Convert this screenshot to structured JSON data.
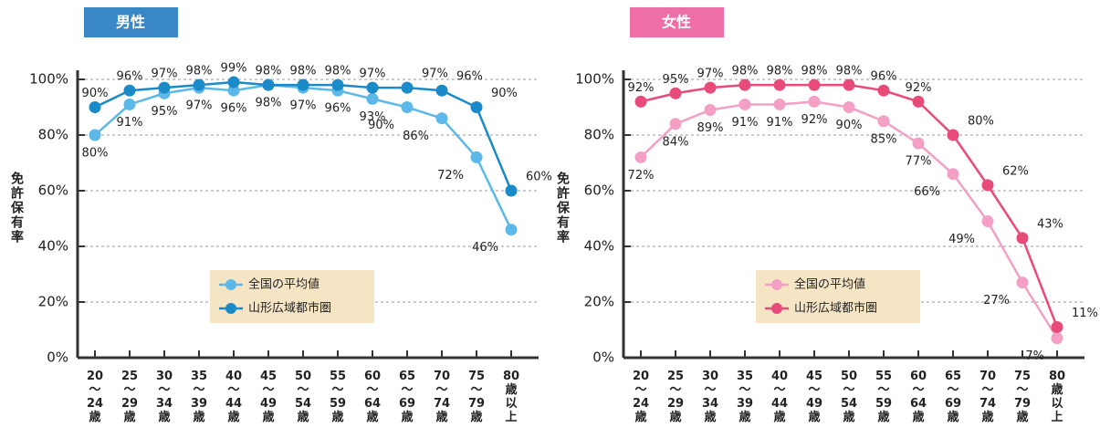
{
  "chart_data": [
    {
      "type": "line",
      "title": "男性",
      "y_label": "免許保有率",
      "categories": [
        "20～24歳",
        "25～29歳",
        "30～34歳",
        "35～39歳",
        "40～44歳",
        "45～49歳",
        "50～54歳",
        "55～59歳",
        "60～64歳",
        "65～69歳",
        "70～74歳",
        "75～79歳",
        "80歳以上"
      ],
      "ylim": [
        0,
        100
      ],
      "yticks": [
        {
          "value": 0,
          "label": "0%"
        },
        {
          "value": 20,
          "label": "20%"
        },
        {
          "value": 40,
          "label": "40%"
        },
        {
          "value": 60,
          "label": "60%"
        },
        {
          "value": 80,
          "label": "80%"
        },
        {
          "value": 100,
          "label": "100%"
        }
      ],
      "grid": true,
      "title_color": "#3a87c8",
      "series": [
        {
          "name": "全国の平均値",
          "color": "#5bb8e8",
          "values": [
            80,
            91,
            95,
            97,
            96,
            98,
            97,
            96,
            93,
            90,
            86,
            72,
            46
          ],
          "value_labels": [
            "80%",
            "91%",
            "95%",
            "97%",
            "96%",
            "98%",
            "97%",
            "96%",
            "93%",
            "90%",
            "86%",
            "72%",
            "46%"
          ]
        },
        {
          "name": "山形広域都市圏",
          "color": "#1a8ac8",
          "values": [
            90,
            96,
            97,
            98,
            99,
            98,
            98,
            98,
            97,
            97,
            96,
            90,
            60
          ],
          "value_labels": [
            "90%",
            "96%",
            "97%",
            "98%",
            "99%",
            "98%",
            "98%",
            "98%",
            "97%",
            "97%",
            "96%",
            "90%",
            "60%"
          ]
        }
      ]
    },
    {
      "type": "line",
      "title": "女性",
      "y_label": "免許保有率",
      "categories": [
        "20～24歳",
        "25～29歳",
        "30～34歳",
        "35～39歳",
        "40～44歳",
        "45～49歳",
        "50～54歳",
        "55～59歳",
        "60～64歳",
        "65～69歳",
        "70～74歳",
        "75～79歳",
        "80歳以上"
      ],
      "ylim": [
        0,
        100
      ],
      "yticks": [
        {
          "value": 0,
          "label": "0%"
        },
        {
          "value": 20,
          "label": "20%"
        },
        {
          "value": 40,
          "label": "40%"
        },
        {
          "value": 60,
          "label": "60%"
        },
        {
          "value": 80,
          "label": "80%"
        },
        {
          "value": 100,
          "label": "100%"
        }
      ],
      "grid": true,
      "title_color": "#ee6fa8",
      "series": [
        {
          "name": "全国の平均値",
          "color": "#f4a0c4",
          "values": [
            72,
            84,
            89,
            91,
            91,
            92,
            90,
            85,
            77,
            66,
            49,
            27,
            7
          ],
          "value_labels": [
            "72%",
            "84%",
            "89%",
            "91%",
            "91%",
            "92%",
            "90%",
            "85%",
            "77%",
            "66%",
            "49%",
            "27%",
            "7%"
          ]
        },
        {
          "name": "山形広域都市圏",
          "color": "#e84a7a",
          "values": [
            92,
            95,
            97,
            98,
            98,
            98,
            98,
            96,
            92,
            80,
            62,
            43,
            11
          ],
          "value_labels": [
            "92%",
            "95%",
            "97%",
            "98%",
            "98%",
            "98%",
            "98%",
            "96%",
            "92%",
            "80%",
            "62%",
            "43%",
            "11%"
          ]
        }
      ]
    }
  ]
}
